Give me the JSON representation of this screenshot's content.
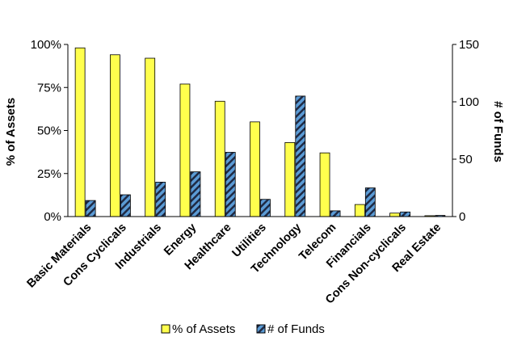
{
  "chart_data": {
    "type": "bar",
    "categories": [
      "Basic Materials",
      "Cons Cyclicals",
      "Industrials",
      "Energy",
      "Healthcare",
      "Utilities",
      "Technology",
      "Telecom",
      "Financials",
      "Cons Non-cyclicals",
      "Real Estate"
    ],
    "series": [
      {
        "name": "% of Assets",
        "axis": "left",
        "color": "#ffff4d",
        "pattern": "solid",
        "values": [
          98,
          94,
          92,
          77,
          67,
          55,
          43,
          37,
          7,
          2,
          0.5
        ]
      },
      {
        "name": "# of Funds",
        "axis": "right",
        "color": "#5b9bd5",
        "pattern": "diagonal-stripe",
        "values": [
          14,
          19,
          30,
          39,
          56,
          15,
          105,
          5,
          25,
          4,
          1
        ]
      }
    ],
    "ylabel": "% of Assets",
    "y2label": "# of Funds",
    "ylim": [
      0,
      100
    ],
    "y2lim": [
      0,
      150
    ],
    "yticks": [
      "0%",
      "25%",
      "50%",
      "75%",
      "100%"
    ],
    "y2ticks": [
      "0",
      "50",
      "100",
      "150"
    ],
    "legend_position": "bottom",
    "grid": false
  }
}
